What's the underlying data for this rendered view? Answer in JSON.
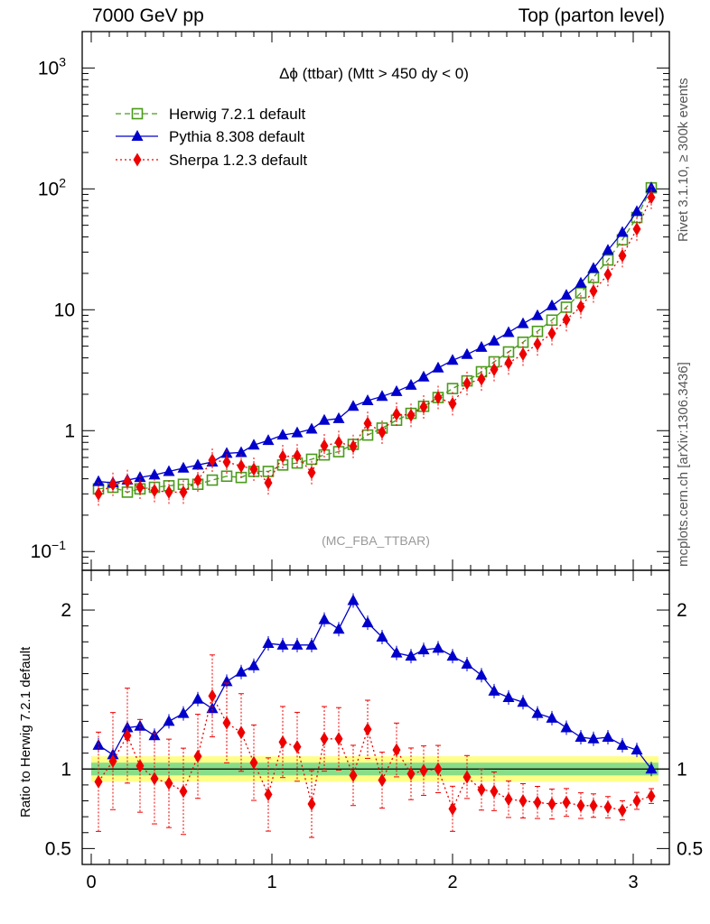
{
  "header": {
    "left": "7000 GeV pp",
    "right": "Top (parton level)"
  },
  "side_labels": {
    "rivet": "Rivet 3.1.10, ≥ 300k events",
    "mcplots": "mcplots.cern.ch [arXiv:1306.3436]"
  },
  "chart_data": {
    "type": "line",
    "title": "Δϕ (ttbar) (Mtt > 450 dy < 0)",
    "watermark": "(MC_FBA_TTBAR)",
    "xlim": [
      -0.05,
      3.2
    ],
    "ylim_main": [
      0.07,
      2000
    ],
    "yscale_main": "log",
    "ylim_ratio": [
      0.4,
      2.25
    ],
    "ylabel_ratio": "Ratio to Herwig 7.2.1 default",
    "x_ticks": [
      "0",
      "1",
      "2",
      "3"
    ],
    "main_y_ticks": [
      {
        "base": "10",
        "exp": "−1",
        "v": 0.1
      },
      {
        "base": "1",
        "exp": "",
        "v": 1
      },
      {
        "base": "10",
        "exp": "",
        "v": 10
      },
      {
        "base": "10",
        "exp": "2",
        "v": 100
      },
      {
        "base": "10",
        "exp": "3",
        "v": 1000
      }
    ],
    "ratio_y_ticks": [
      {
        "label": "0.5",
        "v": 0.5
      },
      {
        "label": "1",
        "v": 1
      },
      {
        "label": "2",
        "v": 2
      }
    ],
    "x": [
      0.04,
      0.12,
      0.2,
      0.27,
      0.35,
      0.43,
      0.51,
      0.59,
      0.67,
      0.75,
      0.83,
      0.9,
      0.98,
      1.06,
      1.14,
      1.22,
      1.29,
      1.37,
      1.45,
      1.53,
      1.61,
      1.69,
      1.77,
      1.84,
      1.92,
      2.0,
      2.08,
      2.16,
      2.23,
      2.31,
      2.39,
      2.47,
      2.55,
      2.63,
      2.71,
      2.78,
      2.86,
      2.94,
      3.02,
      3.1
    ],
    "legend_position": "top-left",
    "series": [
      {
        "name": "Herwig 7.2.1 default",
        "color": "#4a9a1a",
        "marker": "open-square",
        "dash": "6,4",
        "values": [
          0.33,
          0.34,
          0.31,
          0.33,
          0.34,
          0.35,
          0.36,
          0.36,
          0.39,
          0.42,
          0.41,
          0.46,
          0.46,
          0.52,
          0.54,
          0.58,
          0.63,
          0.67,
          0.77,
          0.92,
          1.05,
          1.22,
          1.39,
          1.59,
          1.88,
          2.23,
          2.58,
          3.07,
          3.71,
          4.48,
          5.39,
          6.63,
          8.21,
          10.5,
          13.8,
          18.5,
          25.8,
          37.9,
          58.0,
          102.0
        ]
      },
      {
        "name": "Pythia 8.308 default",
        "color": "#0000cc",
        "marker": "triangle",
        "dash": "",
        "values": [
          0.38,
          0.37,
          0.39,
          0.41,
          0.43,
          0.46,
          0.49,
          0.52,
          0.55,
          0.65,
          0.66,
          0.76,
          0.83,
          0.92,
          0.96,
          1.03,
          1.22,
          1.26,
          1.59,
          1.77,
          1.92,
          2.11,
          2.38,
          2.78,
          3.3,
          3.82,
          4.27,
          4.89,
          5.52,
          6.49,
          7.68,
          8.95,
          10.8,
          13.2,
          16.6,
          22.0,
          31.1,
          43.7,
          65.0,
          102.0
        ]
      },
      {
        "name": "Sherpa 1.2.3 default",
        "color": "#ee0000",
        "marker": "diamond",
        "dash": "2,3",
        "values": [
          0.3,
          0.36,
          0.38,
          0.34,
          0.32,
          0.31,
          0.31,
          0.39,
          0.57,
          0.55,
          0.51,
          0.48,
          0.37,
          0.61,
          0.62,
          0.45,
          0.75,
          0.8,
          0.74,
          1.15,
          0.97,
          1.37,
          1.34,
          1.57,
          1.88,
          1.67,
          2.46,
          2.67,
          3.2,
          3.63,
          4.29,
          5.21,
          6.38,
          8.29,
          10.6,
          14.3,
          19.6,
          28.0,
          46.5,
          85.0
        ]
      }
    ],
    "ratio_series": [
      {
        "name": "Pythia 8.308 default",
        "values": [
          1.15,
          1.09,
          1.26,
          1.27,
          1.21,
          1.3,
          1.35,
          1.44,
          1.38,
          1.55,
          1.61,
          1.65,
          1.79,
          1.78,
          1.78,
          1.78,
          1.94,
          1.88,
          2.06,
          1.92,
          1.83,
          1.73,
          1.71,
          1.75,
          1.76,
          1.71,
          1.66,
          1.59,
          1.49,
          1.45,
          1.42,
          1.35,
          1.32,
          1.26,
          1.2,
          1.19,
          1.2,
          1.15,
          1.12,
          1.0
        ]
      },
      {
        "name": "Sherpa 1.2.3 default",
        "values": [
          0.92,
          1.05,
          1.21,
          1.02,
          0.94,
          0.91,
          0.86,
          1.08,
          1.46,
          1.29,
          1.23,
          1.04,
          0.84,
          1.17,
          1.14,
          0.78,
          1.19,
          1.19,
          0.96,
          1.25,
          0.93,
          1.12,
          0.97,
          0.99,
          1.0,
          0.75,
          0.95,
          0.87,
          0.86,
          0.81,
          0.8,
          0.79,
          0.78,
          0.79,
          0.77,
          0.77,
          0.76,
          0.74,
          0.8,
          0.83
        ]
      }
    ],
    "ratio_band": {
      "outer": "#ffff88",
      "inner": "#88dd88"
    }
  }
}
